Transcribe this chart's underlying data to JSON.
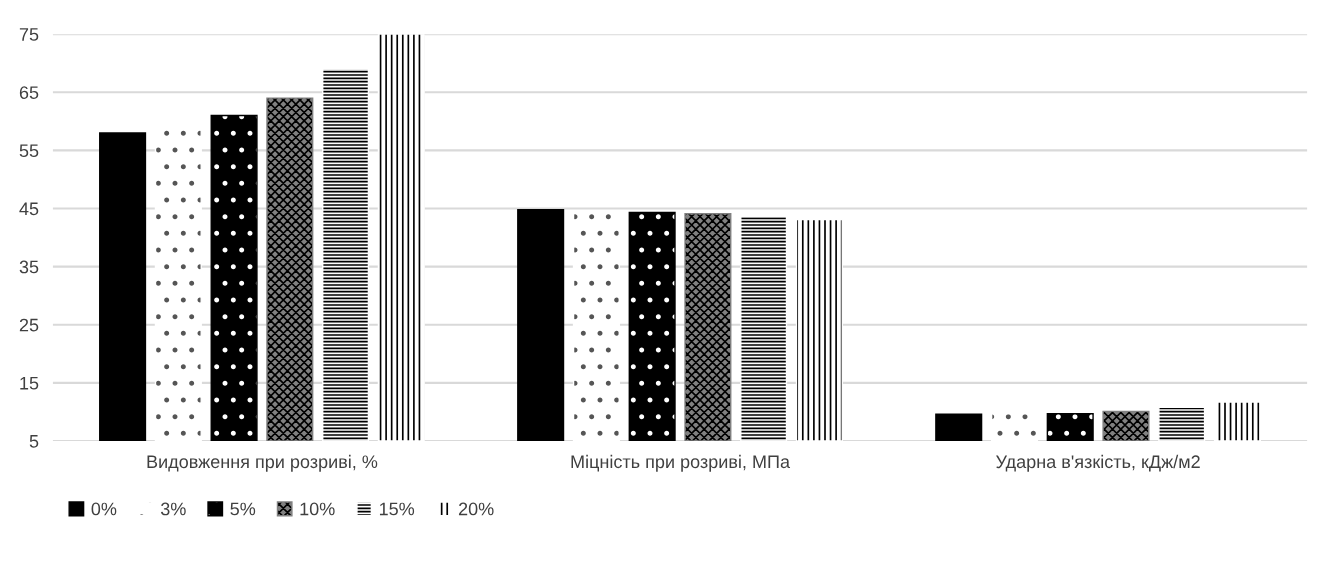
{
  "chart_data": {
    "type": "bar",
    "categories": [
      "Видовження при розриві, %",
      "Міцність при розриві, МПа",
      "Ударна в'язкість, кДж/м2"
    ],
    "series": [
      {
        "name": "0%",
        "color": "#000000",
        "values": [
          58,
          44.8,
          9.6
        ]
      },
      {
        "name": "3%",
        "color": "#ffffff",
        "values": [
          59,
          44.6,
          9.7
        ]
      },
      {
        "name": "5%",
        "color": "#000000",
        "values": [
          61,
          44.3,
          9.7
        ]
      },
      {
        "name": "10%",
        "color": "#808080",
        "values": [
          64,
          44.1,
          10.1
        ]
      },
      {
        "name": "15%",
        "color": "#ffffff",
        "values": [
          69,
          43.6,
          10.8
        ]
      },
      {
        "name": "20%",
        "color": "#ffffff",
        "values": [
          75,
          43.1,
          11.7
        ]
      }
    ],
    "ylim": [
      5,
      75
    ],
    "yticks": [
      5,
      15,
      25,
      35,
      45,
      55,
      65,
      75
    ],
    "grid": "y",
    "legend": "bottom"
  }
}
